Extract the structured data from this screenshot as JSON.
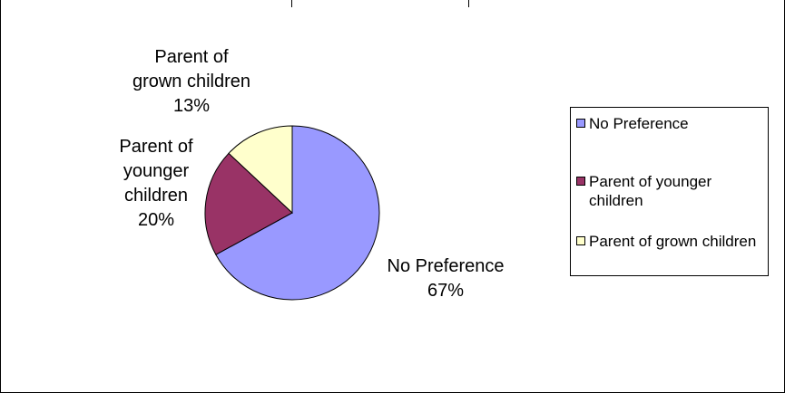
{
  "chart_data": {
    "type": "pie",
    "title": "",
    "slices": [
      {
        "name": "No Preference",
        "value": 67,
        "label": [
          "No Preference",
          "67%"
        ],
        "color": "#9999FF"
      },
      {
        "name": "Parent of younger children",
        "value": 20,
        "label": [
          "Parent of",
          "younger",
          "children",
          "20%"
        ],
        "color": "#993366"
      },
      {
        "name": "Parent of grown children",
        "value": 13,
        "label": [
          "Parent of",
          "grown children",
          "13%"
        ],
        "color": "#FFFFCC"
      }
    ],
    "legend": {
      "position": "right",
      "entries": [
        {
          "label": "No Preference",
          "color": "#9999FF"
        },
        {
          "label": "Parent of younger children",
          "color": "#993366"
        },
        {
          "label": "Parent of grown children",
          "color": "#FFFFCC"
        }
      ]
    }
  }
}
